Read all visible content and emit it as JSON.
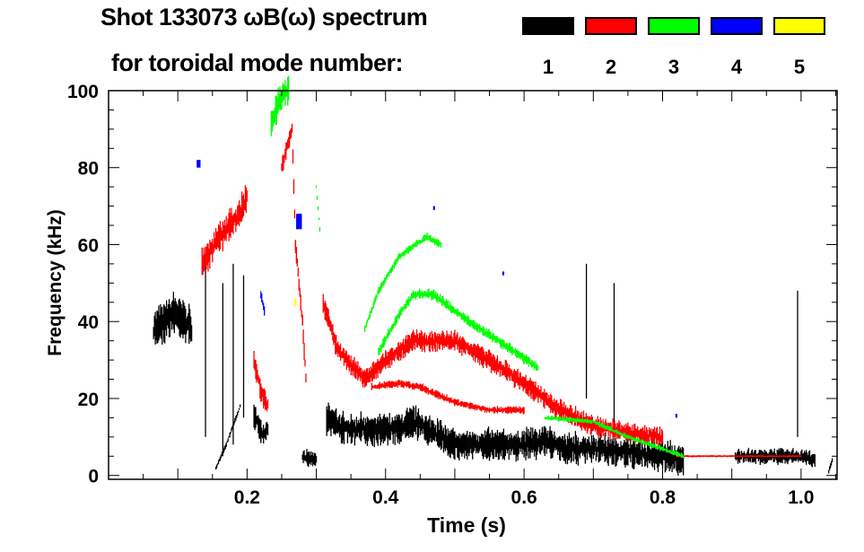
{
  "header": {
    "title": "Shot 133073 ωB(ω) spectrum",
    "subtitle": "for toroidal mode number:"
  },
  "chart_data": {
    "type": "heatmap",
    "title": "Shot 133073 ωB(ω) spectrum",
    "xlabel": "Time (s)",
    "ylabel": "Frequency (kHz)",
    "xlim": [
      0,
      1.052
    ],
    "ylim": [
      -1,
      100
    ],
    "xticks": [
      0.2,
      0.4,
      0.6,
      0.8,
      1.0
    ],
    "xtick_labels": [
      "0.2",
      "0.4",
      "0.6",
      "0.8",
      "1.0"
    ],
    "yticks": [
      0,
      20,
      40,
      60,
      80,
      100
    ],
    "ytick_labels": [
      "0",
      "20",
      "40",
      "60",
      "80",
      "100"
    ],
    "legend": {
      "placement": "top-right",
      "label": "for toroidal mode number:"
    },
    "series": [
      {
        "name": "1",
        "color": "#000000",
        "features": [
          {
            "width": 8,
            "points": [
              [
                0.065,
                38
              ],
              [
                0.08,
                40
              ],
              [
                0.095,
                42
              ],
              [
                0.11,
                40
              ],
              [
                0.12,
                38
              ]
            ]
          },
          {
            "width": 5,
            "points": [
              [
                0.21,
                16
              ],
              [
                0.22,
                11
              ],
              [
                0.23,
                12
              ]
            ]
          },
          {
            "width": 3,
            "points": [
              [
                0.28,
                5
              ],
              [
                0.3,
                4
              ]
            ]
          },
          {
            "width": 6,
            "points": [
              [
                0.315,
                15
              ],
              [
                0.34,
                12
              ],
              [
                0.38,
                12
              ],
              [
                0.42,
                12
              ],
              [
                0.44,
                14
              ],
              [
                0.47,
                11
              ],
              [
                0.5,
                8
              ],
              [
                0.55,
                8
              ],
              [
                0.6,
                8
              ],
              [
                0.63,
                9
              ],
              [
                0.66,
                7
              ],
              [
                0.7,
                7
              ],
              [
                0.75,
                6
              ],
              [
                0.8,
                5
              ],
              [
                0.83,
                4
              ]
            ]
          },
          {
            "width": 3,
            "points": [
              [
                0.905,
                5
              ],
              [
                0.95,
                5
              ],
              [
                1.0,
                5
              ],
              [
                1.02,
                4
              ]
            ]
          },
          {
            "width": 0.6,
            "points": [
              [
                0.14,
                10
              ],
              [
                0.14,
                55
              ]
            ]
          },
          {
            "width": 0.6,
            "points": [
              [
                0.165,
                5
              ],
              [
                0.165,
                50
              ]
            ]
          },
          {
            "width": 0.6,
            "points": [
              [
                0.18,
                8
              ],
              [
                0.18,
                55
              ]
            ]
          },
          {
            "width": 0.6,
            "points": [
              [
                0.195,
                15
              ],
              [
                0.195,
                52
              ]
            ]
          },
          {
            "width": 0.6,
            "points": [
              [
                0.69,
                20
              ],
              [
                0.69,
                55
              ]
            ]
          },
          {
            "width": 0.6,
            "points": [
              [
                0.73,
                10
              ],
              [
                0.73,
                50
              ]
            ]
          },
          {
            "width": 0.6,
            "points": [
              [
                0.995,
                10
              ],
              [
                0.995,
                48
              ]
            ]
          },
          {
            "width": 1,
            "points": [
              [
                0.155,
                2
              ],
              [
                0.17,
                8
              ],
              [
                0.19,
                18
              ]
            ]
          },
          {
            "width": 1,
            "points": [
              [
                1.04,
                1
              ],
              [
                1.045,
                4
              ]
            ]
          }
        ]
      },
      {
        "name": "2",
        "color": "#ff0000",
        "features": [
          {
            "width": 6,
            "points": [
              [
                0.135,
                55
              ],
              [
                0.16,
                62
              ],
              [
                0.19,
                68
              ],
              [
                0.2,
                73
              ]
            ]
          },
          {
            "width": 4,
            "points": [
              [
                0.21,
                30
              ],
              [
                0.22,
                22
              ],
              [
                0.23,
                18
              ]
            ]
          },
          {
            "width": 4,
            "points": [
              [
                0.25,
                80
              ],
              [
                0.265,
                90
              ],
              [
                0.27,
                60
              ],
              [
                0.28,
                40
              ],
              [
                0.285,
                25
              ]
            ]
          },
          {
            "width": 4,
            "points": [
              [
                0.31,
                45
              ],
              [
                0.33,
                33
              ],
              [
                0.36,
                27
              ],
              [
                0.37,
                25
              ],
              [
                0.4,
                30
              ],
              [
                0.44,
                35
              ],
              [
                0.5,
                35
              ],
              [
                0.55,
                30
              ],
              [
                0.6,
                24
              ],
              [
                0.65,
                17
              ],
              [
                0.7,
                13
              ],
              [
                0.75,
                11
              ],
              [
                0.8,
                10
              ]
            ]
          },
          {
            "width": 1.5,
            "points": [
              [
                0.38,
                23
              ],
              [
                0.42,
                24
              ],
              [
                0.45,
                23
              ],
              [
                0.5,
                19
              ],
              [
                0.55,
                17
              ],
              [
                0.6,
                17
              ]
            ]
          },
          {
            "width": 0.4,
            "points": [
              [
                0.82,
                5
              ],
              [
                1.0,
                5
              ]
            ]
          }
        ]
      },
      {
        "name": "3",
        "color": "#00ff00",
        "features": [
          {
            "width": 6,
            "points": [
              [
                0.235,
                92
              ],
              [
                0.245,
                97
              ],
              [
                0.26,
                101
              ]
            ]
          },
          {
            "width": 1.5,
            "points": [
              [
                0.37,
                38
              ],
              [
                0.39,
                48
              ],
              [
                0.42,
                57
              ],
              [
                0.46,
                62
              ],
              [
                0.48,
                60
              ]
            ]
          },
          {
            "width": 2,
            "points": [
              [
                0.39,
                32
              ],
              [
                0.42,
                42
              ],
              [
                0.44,
                47
              ],
              [
                0.47,
                47
              ],
              [
                0.52,
                40
              ],
              [
                0.58,
                33
              ],
              [
                0.62,
                28
              ]
            ]
          },
          {
            "width": 1,
            "points": [
              [
                0.3,
                75
              ],
              [
                0.305,
                64
              ]
            ]
          },
          {
            "width": 1,
            "points": [
              [
                0.63,
                15
              ],
              [
                0.7,
                14
              ],
              [
                0.75,
                10
              ],
              [
                0.83,
                5
              ]
            ]
          }
        ]
      },
      {
        "name": "4",
        "color": "#0000ff",
        "features": [
          {
            "width": 2,
            "points": [
              [
                0.13,
                82
              ],
              [
                0.13,
                80
              ]
            ]
          },
          {
            "width": 2,
            "points": [
              [
                0.22,
                47
              ],
              [
                0.225,
                43
              ]
            ]
          },
          {
            "width": 3,
            "points": [
              [
                0.275,
                68
              ],
              [
                0.275,
                64
              ]
            ]
          },
          {
            "width": 1,
            "points": [
              [
                0.47,
                70
              ],
              [
                0.47,
                69
              ]
            ]
          },
          {
            "width": 1,
            "points": [
              [
                0.57,
                53
              ],
              [
                0.57,
                52
              ]
            ]
          },
          {
            "width": 1,
            "points": [
              [
                0.82,
                16
              ],
              [
                0.82,
                15
              ]
            ]
          }
        ]
      },
      {
        "name": "5",
        "color": "#ffff00",
        "features": [
          {
            "width": 1,
            "points": [
              [
                0.27,
                46
              ],
              [
                0.27,
                44
              ]
            ]
          }
        ]
      }
    ]
  }
}
